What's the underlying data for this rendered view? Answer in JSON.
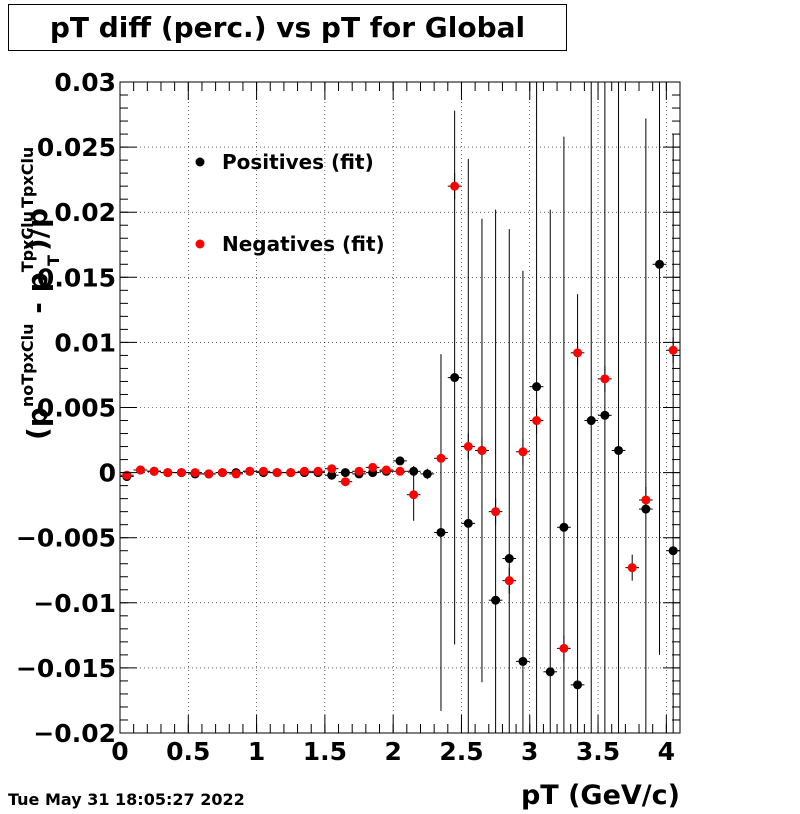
{
  "title": "pT diff (perc.) vs pT for Global",
  "timestamp": "Tue May 31 18:05:27 2022",
  "chart_data": {
    "type": "scatter",
    "title": "pT diff (perc.) vs pT for Global",
    "xlabel": "pT (GeV/c)",
    "ylabel": {
      "open": "(p",
      "sup1": "noTpxClu",
      "mid": " - p",
      "sup2": "TpxClu",
      "sub2": "T",
      "close": ")/p",
      "sup3": "TpxClu"
    },
    "xlim": [
      0,
      4.1
    ],
    "ylim": [
      -0.02,
      0.03
    ],
    "xticks": [
      0,
      0.5,
      1,
      1.5,
      2,
      2.5,
      3,
      3.5,
      4
    ],
    "xtick_labels": [
      "0",
      "0.5",
      "1",
      "1.5",
      "2",
      "2.5",
      "3",
      "3.5",
      "4"
    ],
    "yticks": [
      -0.02,
      -0.015,
      -0.01,
      -0.005,
      0,
      0.005,
      0.01,
      0.015,
      0.02,
      0.025,
      0.03
    ],
    "ytick_labels": [
      "−0.02",
      "−0.015",
      "−0.01",
      "−0.005",
      "0",
      "0.005",
      "0.01",
      "0.015",
      "0.02",
      "0.025",
      "0.03"
    ],
    "grid": true,
    "legend_position": "top-left",
    "x_error": 0.05,
    "series": [
      {
        "name": "Positives (fit)",
        "color": "#000000",
        "points": [
          {
            "x": 0.05,
            "y": -0.0003,
            "err": 0.0003
          },
          {
            "x": 0.15,
            "y": 0.0002,
            "err": 0.0002
          },
          {
            "x": 0.25,
            "y": 0.0001,
            "err": 0.0001
          },
          {
            "x": 0.35,
            "y": 0.0,
            "err": 0.0001
          },
          {
            "x": 0.45,
            "y": 0.0,
            "err": 0.0001
          },
          {
            "x": 0.55,
            "y": -0.0001,
            "err": 0.0001
          },
          {
            "x": 0.65,
            "y": -0.0001,
            "err": 0.0001
          },
          {
            "x": 0.75,
            "y": 0.0,
            "err": 0.0001
          },
          {
            "x": 0.85,
            "y": 0.0,
            "err": 0.0001
          },
          {
            "x": 0.95,
            "y": 0.0001,
            "err": 0.0001
          },
          {
            "x": 1.05,
            "y": 0.0,
            "err": 0.0001
          },
          {
            "x": 1.15,
            "y": 0.0,
            "err": 0.0001
          },
          {
            "x": 1.25,
            "y": 0.0,
            "err": 0.0001
          },
          {
            "x": 1.35,
            "y": 0.0,
            "err": 0.0001
          },
          {
            "x": 1.45,
            "y": 0.0,
            "err": 0.0002
          },
          {
            "x": 1.55,
            "y": -0.0002,
            "err": 0.0002
          },
          {
            "x": 1.65,
            "y": 0.0,
            "err": 0.0002
          },
          {
            "x": 1.75,
            "y": -0.0001,
            "err": 0.0002
          },
          {
            "x": 1.85,
            "y": 0.0,
            "err": 0.0003
          },
          {
            "x": 1.95,
            "y": 0.0001,
            "err": 0.0003
          },
          {
            "x": 2.05,
            "y": 0.0009,
            "err": 0.0003
          },
          {
            "x": 2.15,
            "y": 0.0001,
            "err": 0.0004
          },
          {
            "x": 2.25,
            "y": -0.0001,
            "err": 0.0004
          },
          {
            "x": 2.35,
            "y": -0.0046,
            "err": 0.0137
          },
          {
            "x": 2.45,
            "y": 0.0073,
            "err": 0.0205
          },
          {
            "x": 2.55,
            "y": -0.0039,
            "err": 0.028
          },
          {
            "x": 2.65,
            "y": 0.0017,
            "err": 0.0178
          },
          {
            "x": 2.75,
            "y": -0.0098,
            "err": 0.03
          },
          {
            "x": 2.85,
            "y": -0.0066,
            "err": 0.0253
          },
          {
            "x": 2.95,
            "y": -0.0145,
            "err": 0.03
          },
          {
            "x": 3.05,
            "y": 0.0066,
            "err": 0.03
          },
          {
            "x": 3.15,
            "y": -0.0153,
            "err": 0.0355
          },
          {
            "x": 3.25,
            "y": -0.0042,
            "err": 0.03
          },
          {
            "x": 3.35,
            "y": -0.0163,
            "err": 0.03
          },
          {
            "x": 3.45,
            "y": 0.004,
            "err": 0.03
          },
          {
            "x": 3.55,
            "y": 0.0044,
            "err": 0.03
          },
          {
            "x": 3.65,
            "y": 0.0017,
            "err": 0.03
          },
          {
            "x": 3.85,
            "y": -0.0028,
            "err": 0.03
          },
          {
            "x": 3.95,
            "y": 0.016,
            "err": 0.03
          },
          {
            "x": 4.05,
            "y": -0.006,
            "err": 0.032
          }
        ]
      },
      {
        "name": "Negatives (fit)",
        "color": "#ff0000",
        "points": [
          {
            "x": 0.05,
            "y": -0.0002,
            "err": 0.0003
          },
          {
            "x": 0.15,
            "y": 0.0002,
            "err": 0.0002
          },
          {
            "x": 0.25,
            "y": 0.0001,
            "err": 0.0001
          },
          {
            "x": 0.35,
            "y": 0.0,
            "err": 0.0001
          },
          {
            "x": 0.45,
            "y": 0.0,
            "err": 0.0001
          },
          {
            "x": 0.55,
            "y": 0.0,
            "err": 0.0001
          },
          {
            "x": 0.65,
            "y": -0.0001,
            "err": 0.0001
          },
          {
            "x": 0.75,
            "y": 0.0,
            "err": 0.0001
          },
          {
            "x": 0.85,
            "y": -0.0001,
            "err": 0.0001
          },
          {
            "x": 0.95,
            "y": 0.0001,
            "err": 0.0001
          },
          {
            "x": 1.05,
            "y": 0.0001,
            "err": 0.0001
          },
          {
            "x": 1.15,
            "y": 0.0,
            "err": 0.0001
          },
          {
            "x": 1.25,
            "y": 0.0,
            "err": 0.0001
          },
          {
            "x": 1.35,
            "y": 0.0001,
            "err": 0.0001
          },
          {
            "x": 1.45,
            "y": 0.0001,
            "err": 0.0002
          },
          {
            "x": 1.55,
            "y": 0.0003,
            "err": 0.0002
          },
          {
            "x": 1.65,
            "y": -0.0007,
            "err": 0.0002
          },
          {
            "x": 1.75,
            "y": 0.0001,
            "err": 0.0002
          },
          {
            "x": 1.85,
            "y": 0.0004,
            "err": 0.0003
          },
          {
            "x": 1.95,
            "y": 0.0002,
            "err": 0.0003
          },
          {
            "x": 2.05,
            "y": 0.0001,
            "err": 0.0003
          },
          {
            "x": 2.15,
            "y": -0.0017,
            "err": 0.002
          },
          {
            "x": 2.35,
            "y": 0.0011,
            "err": 0.0004
          },
          {
            "x": 2.45,
            "y": 0.022,
            "err": 0.001
          },
          {
            "x": 2.55,
            "y": 0.002,
            "err": 0.001
          },
          {
            "x": 2.65,
            "y": 0.0017,
            "err": 0.001
          },
          {
            "x": 2.75,
            "y": -0.003,
            "err": 0.001
          },
          {
            "x": 2.85,
            "y": -0.0083,
            "err": 0.001
          },
          {
            "x": 2.95,
            "y": 0.0016,
            "err": 0.001
          },
          {
            "x": 3.05,
            "y": 0.004,
            "err": 0.001
          },
          {
            "x": 3.25,
            "y": -0.0135,
            "err": 0.001
          },
          {
            "x": 3.35,
            "y": 0.0092,
            "err": 0.001
          },
          {
            "x": 3.55,
            "y": 0.0072,
            "err": 0.001
          },
          {
            "x": 3.75,
            "y": -0.0073,
            "err": 0.001
          },
          {
            "x": 3.85,
            "y": -0.0021,
            "err": 0.001
          },
          {
            "x": 4.05,
            "y": 0.0094,
            "err": 0.001
          }
        ]
      }
    ]
  }
}
